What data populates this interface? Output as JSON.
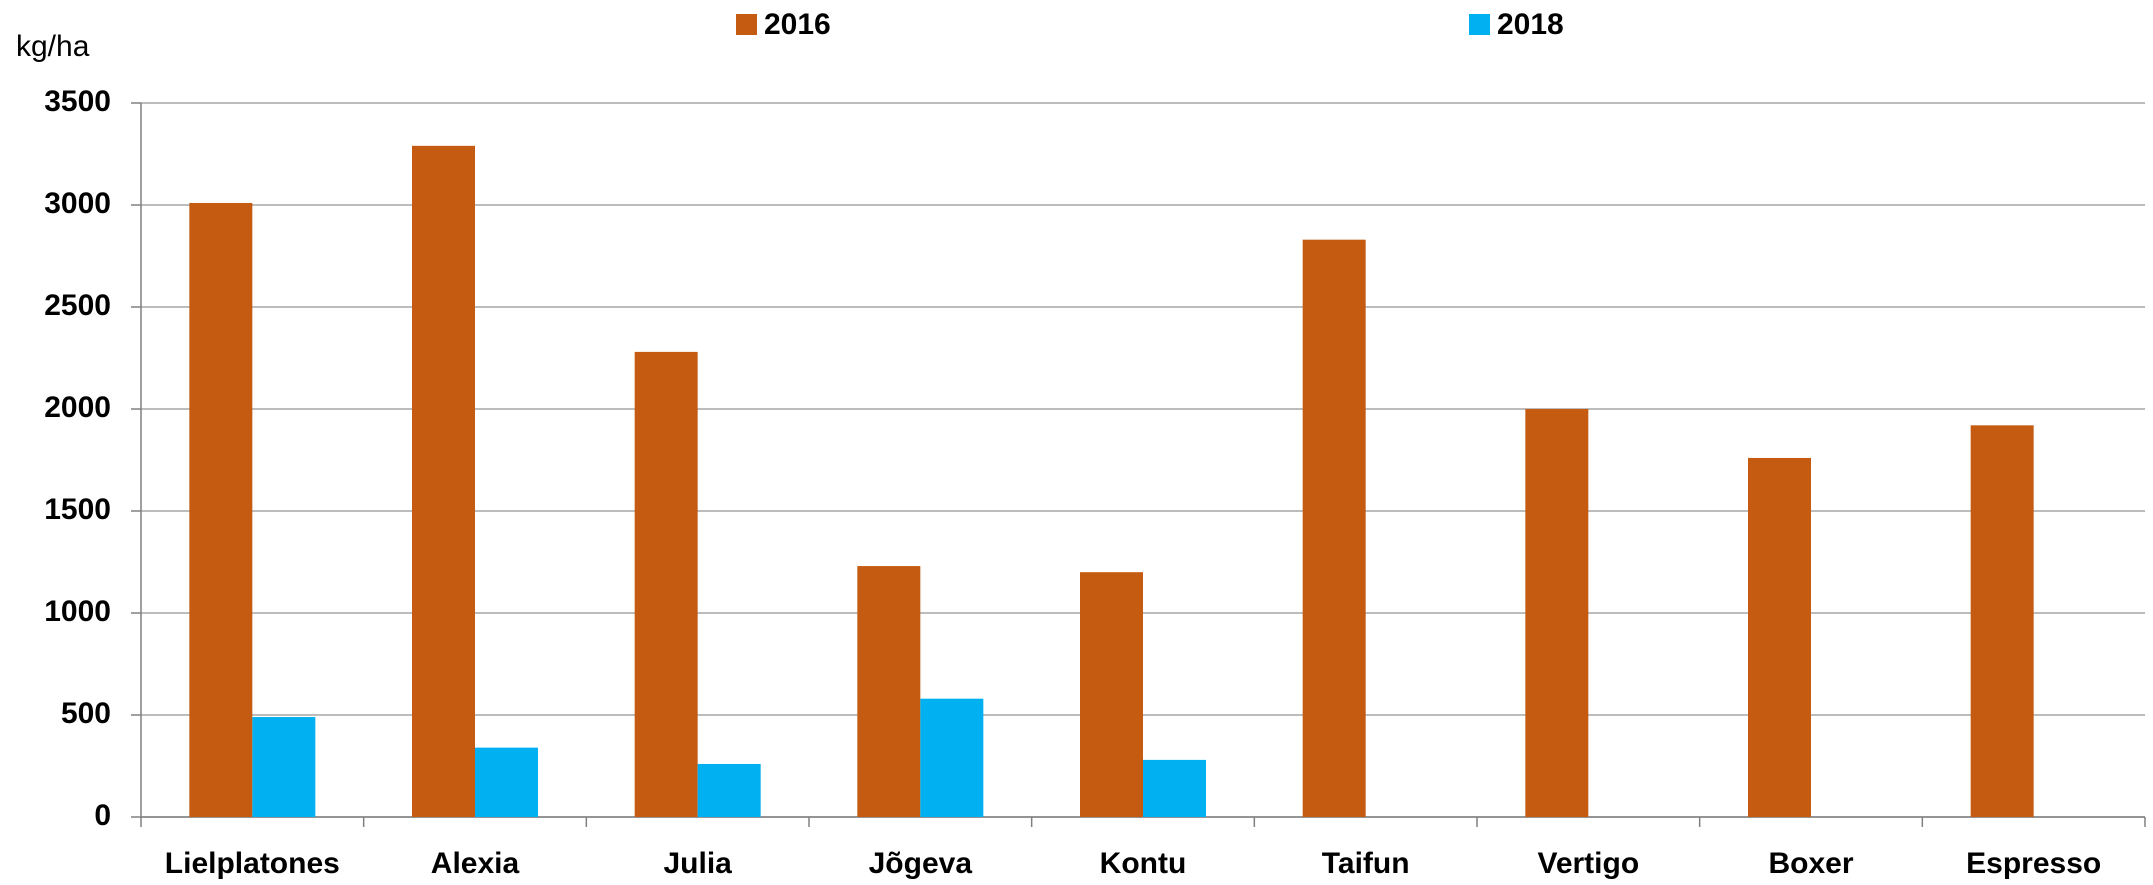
{
  "chart_data": {
    "type": "bar",
    "y_label": "kg/ha",
    "categories": [
      "Lielplatones",
      "Alexia",
      "Julia",
      "Jõgeva",
      "Kontu",
      "Taifun",
      "Vertigo",
      "Boxer",
      "Espresso"
    ],
    "series": [
      {
        "name": "2016",
        "color": "#c55a11",
        "values": [
          3010,
          3290,
          2280,
          1230,
          1200,
          2830,
          2000,
          1760,
          1920
        ]
      },
      {
        "name": "2018",
        "color": "#00b0f0",
        "values": [
          490,
          340,
          260,
          580,
          280,
          null,
          null,
          null,
          null
        ]
      }
    ],
    "ylim": [
      0,
      3500
    ],
    "yticks": [
      0,
      500,
      1000,
      1500,
      2000,
      2500,
      3000,
      3500
    ],
    "grid": true,
    "legend": "top"
  }
}
